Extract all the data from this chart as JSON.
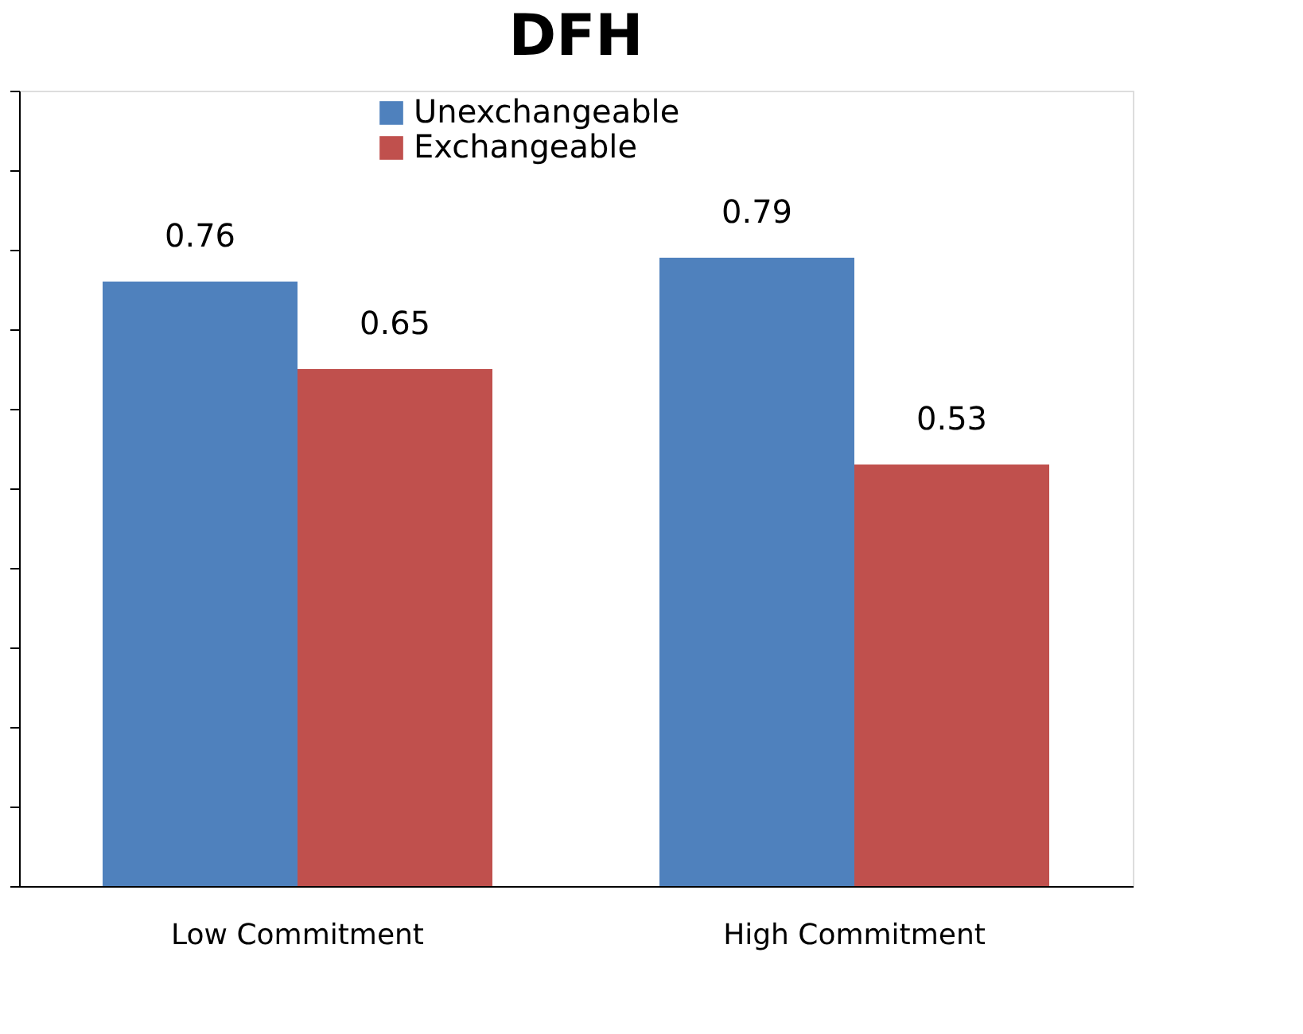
{
  "chart_data": {
    "type": "bar",
    "title": "DFH",
    "categories": [
      "Low Commitment",
      "High Commitment"
    ],
    "series": [
      {
        "name": "Unexchangeable",
        "color": "#4f81bd",
        "values": [
          0.76,
          0.79
        ]
      },
      {
        "name": "Exchangeable",
        "color": "#c0504d",
        "values": [
          0.65,
          0.53
        ]
      }
    ],
    "ylim": [
      0,
      1
    ],
    "yticks": [
      {
        "value": 0,
        "label": null
      },
      {
        "value": 0.1,
        "label": null
      },
      {
        "value": 0.2,
        "label": null
      },
      {
        "value": 0.3,
        "label": null
      },
      {
        "value": 0.4,
        "label": null
      },
      {
        "value": 0.5,
        "label": null
      },
      {
        "value": 0.6,
        "label": null
      },
      {
        "value": 0.7,
        "label": null
      },
      {
        "value": 0.8,
        "label": null
      },
      {
        "value": 0.9,
        "label": null
      },
      {
        "value": 1,
        "label": null
      }
    ],
    "tick_labels": "x",
    "data_labels": true,
    "grid": false,
    "legend": "top"
  }
}
